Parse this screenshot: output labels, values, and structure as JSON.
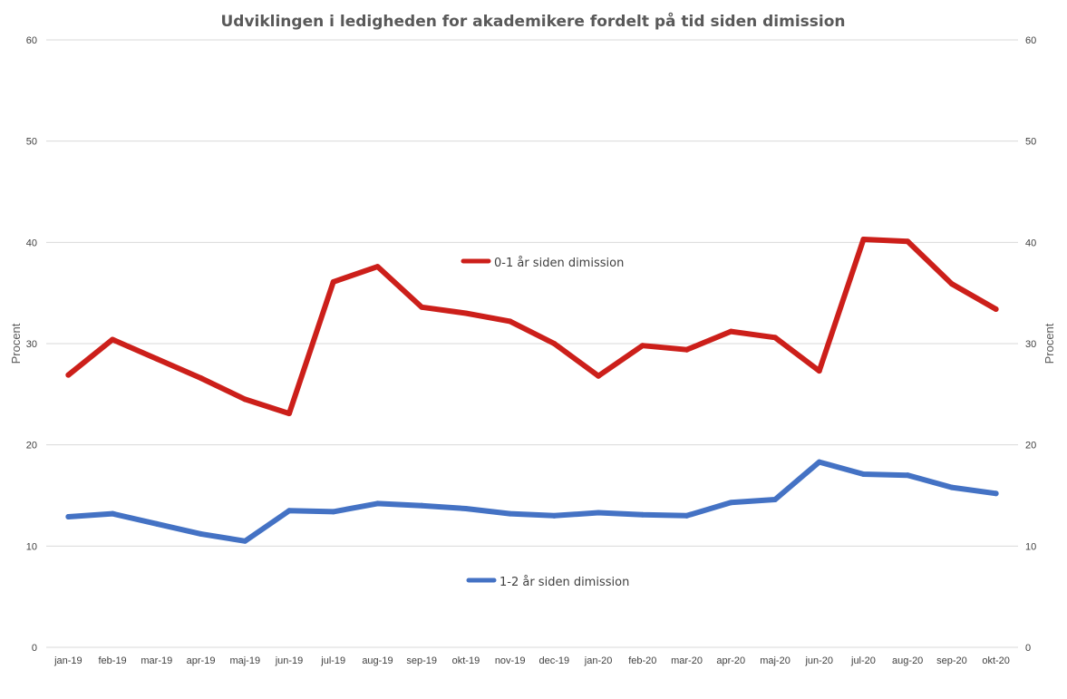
{
  "chart_data": {
    "type": "line",
    "title": "Udviklingen i ledigheden for akademikere fordelt på tid siden dimission",
    "ylabel_left": "Procent",
    "ylabel_right": "Procent",
    "ylim": [
      0,
      60
    ],
    "yticks": [
      "0",
      "10",
      "20",
      "30",
      "40",
      "50",
      "60"
    ],
    "grid": true,
    "categories": [
      "jan-19",
      "feb-19",
      "mar-19",
      "apr-19",
      "maj-19",
      "jun-19",
      "jul-19",
      "aug-19",
      "sep-19",
      "okt-19",
      "nov-19",
      "dec-19",
      "jan-20",
      "feb-20",
      "mar-20",
      "apr-20",
      "maj-20",
      "jun-20",
      "jul-20",
      "aug-20",
      "sep-20",
      "okt-20"
    ],
    "series": [
      {
        "name": "0-1 år siden dimission",
        "color": "#cc1f1a",
        "values": [
          26.9,
          30.4,
          28.5,
          26.6,
          24.5,
          23.1,
          36.1,
          37.6,
          33.6,
          33.0,
          32.2,
          30.0,
          26.8,
          29.8,
          29.4,
          31.2,
          30.6,
          27.3,
          40.3,
          40.1,
          35.9,
          33.4
        ]
      },
      {
        "name": "1-2 år siden dimission",
        "color": "#4472c4",
        "values": [
          12.9,
          13.2,
          12.2,
          11.2,
          10.5,
          13.5,
          13.4,
          14.2,
          14.0,
          13.7,
          13.2,
          13.0,
          13.3,
          13.1,
          13.0,
          14.3,
          14.6,
          18.3,
          17.1,
          17.0,
          15.8,
          15.2
        ]
      }
    ]
  }
}
